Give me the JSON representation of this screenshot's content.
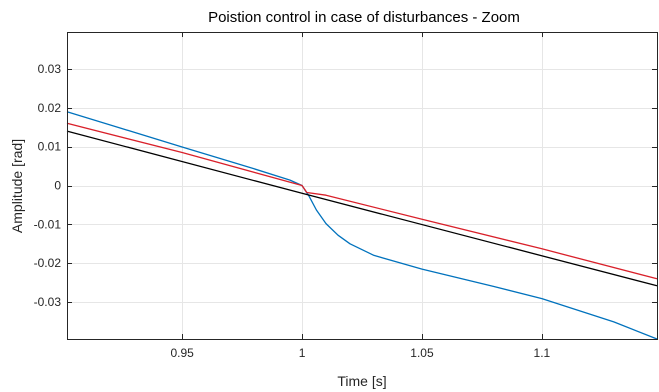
{
  "chart_data": {
    "type": "line",
    "title": "Poistion control in case of disturbances - Zoom",
    "xlabel": "Time [s]",
    "ylabel": "Amplitude [rad]",
    "xlim": [
      0.902,
      1.148
    ],
    "ylim": [
      -0.0395,
      0.0395
    ],
    "grid": true,
    "legend": "none",
    "x_ticks": [
      0.95,
      1,
      1.05,
      1.1
    ],
    "x_tick_labels": [
      "0.95",
      "1",
      "1.05",
      "1.1"
    ],
    "y_ticks": [
      0.03,
      0.02,
      0.01,
      0,
      -0.01,
      -0.02,
      -0.03
    ],
    "y_tick_labels": [
      "0.03",
      "0.02",
      "0.01",
      "0",
      "-0.01",
      "-0.02",
      "-0.03"
    ],
    "series": [
      {
        "color": "#0072BD",
        "x": [
          0.902,
          0.95,
          0.98,
          0.995,
          1.0,
          1.003,
          1.006,
          1.01,
          1.015,
          1.02,
          1.03,
          1.05,
          1.08,
          1.1,
          1.13,
          1.148
        ],
        "y": [
          0.019,
          0.0099,
          0.0043,
          0.0014,
          0.0,
          -0.0028,
          -0.0063,
          -0.0098,
          -0.0128,
          -0.015,
          -0.018,
          -0.0215,
          -0.026,
          -0.0291,
          -0.0351,
          -0.0395
        ]
      },
      {
        "color": "#D9202A",
        "x": [
          0.902,
          0.95,
          1.0,
          1.002,
          1.01,
          1.05,
          1.1,
          1.148
        ],
        "y": [
          0.016,
          0.0085,
          0.0,
          -0.0018,
          -0.0025,
          -0.0087,
          -0.0163,
          -0.024
        ]
      },
      {
        "color": "#000000",
        "x": [
          0.902,
          1.0,
          1.148
        ],
        "y": [
          0.014,
          -0.002,
          -0.0258
        ]
      }
    ]
  }
}
